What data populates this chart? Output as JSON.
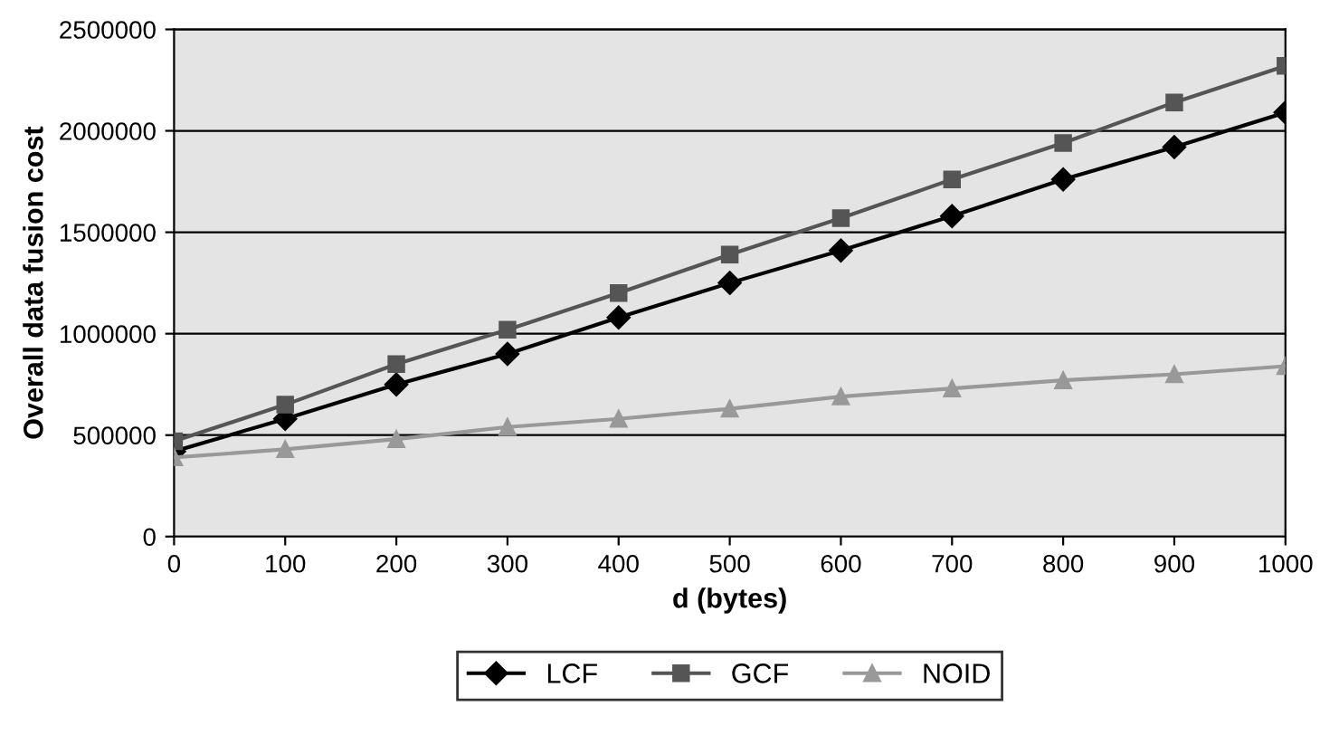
{
  "chart_data": {
    "type": "line",
    "xlabel": "d (bytes)",
    "ylabel": "Overall data fusion cost",
    "x": [
      0,
      100,
      200,
      300,
      400,
      500,
      600,
      700,
      800,
      900,
      1000
    ],
    "series": [
      {
        "name": "LCF",
        "color": "#000000",
        "marker": "diamond",
        "values": [
          420000,
          580000,
          750000,
          900000,
          1080000,
          1250000,
          1410000,
          1580000,
          1760000,
          1920000,
          2090000
        ]
      },
      {
        "name": "GCF",
        "color": "#555555",
        "marker": "square",
        "values": [
          470000,
          650000,
          850000,
          1020000,
          1200000,
          1390000,
          1570000,
          1760000,
          1940000,
          2140000,
          2320000
        ]
      },
      {
        "name": "NOID",
        "color": "#999999",
        "marker": "triangle",
        "values": [
          390000,
          430000,
          480000,
          540000,
          580000,
          630000,
          690000,
          730000,
          770000,
          800000,
          840000
        ]
      }
    ],
    "xlim": [
      0,
      1000
    ],
    "xticks": [
      0,
      100,
      200,
      300,
      400,
      500,
      600,
      700,
      800,
      900,
      1000
    ],
    "ylim": [
      0,
      2500000
    ],
    "yticks": [
      0,
      500000,
      1000000,
      1500000,
      2000000,
      2500000
    ],
    "grid": "y",
    "legend": "bottom",
    "line_style": "solid"
  }
}
